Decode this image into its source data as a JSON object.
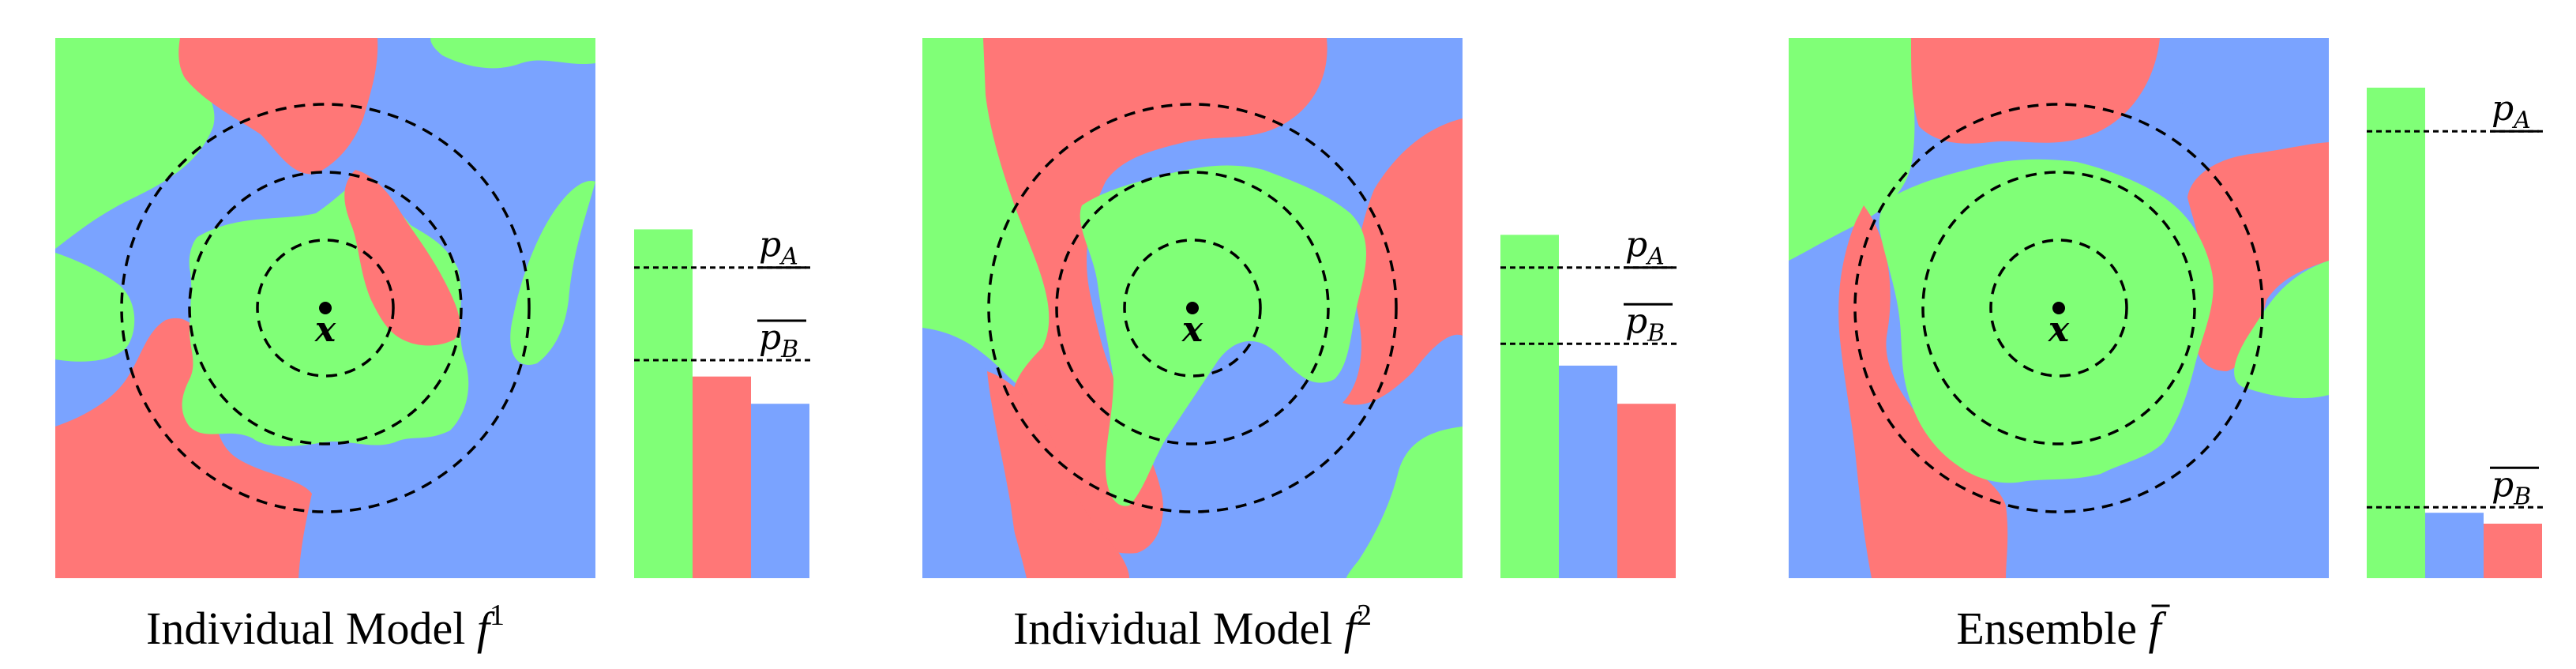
{
  "colors": {
    "green": "#80FF77",
    "red": "#FF7777",
    "blue": "#7AA3FF",
    "line": "#000000"
  },
  "panels": [
    {
      "id": "f1",
      "caption": {
        "text": "Individual Model ",
        "sym": "f",
        "sup": "1",
        "bar": false
      },
      "point_label": "x",
      "bars": [
        {
          "color": "green",
          "value": 0.64
        },
        {
          "color": "red",
          "value": 0.37
        },
        {
          "color": "blue",
          "value": 0.32
        }
      ],
      "p_A": {
        "label": "p",
        "sub": "A",
        "value": 0.57
      },
      "p_B": {
        "label": "p",
        "sub": "B",
        "value": 0.4
      }
    },
    {
      "id": "f2",
      "caption": {
        "text": "Individual Model ",
        "sym": "f",
        "sup": "2",
        "bar": false
      },
      "point_label": "x",
      "bars": [
        {
          "color": "green",
          "value": 0.63
        },
        {
          "color": "blue",
          "value": 0.39
        },
        {
          "color": "red",
          "value": 0.32
        }
      ],
      "p_A": {
        "label": "p",
        "sub": "A",
        "value": 0.57
      },
      "p_B": {
        "label": "p",
        "sub": "B",
        "value": 0.43
      }
    },
    {
      "id": "ensemble",
      "caption": {
        "text": "Ensemble ",
        "sym": "f",
        "sup": "",
        "bar": true
      },
      "point_label": "x",
      "bars": [
        {
          "color": "green",
          "value": 0.9
        },
        {
          "color": "blue",
          "value": 0.12
        },
        {
          "color": "red",
          "value": 0.1
        }
      ],
      "p_A": {
        "label": "p",
        "sub": "A",
        "value": 0.82
      },
      "p_B": {
        "label": "p",
        "sub": "B",
        "value": 0.13
      }
    }
  ]
}
